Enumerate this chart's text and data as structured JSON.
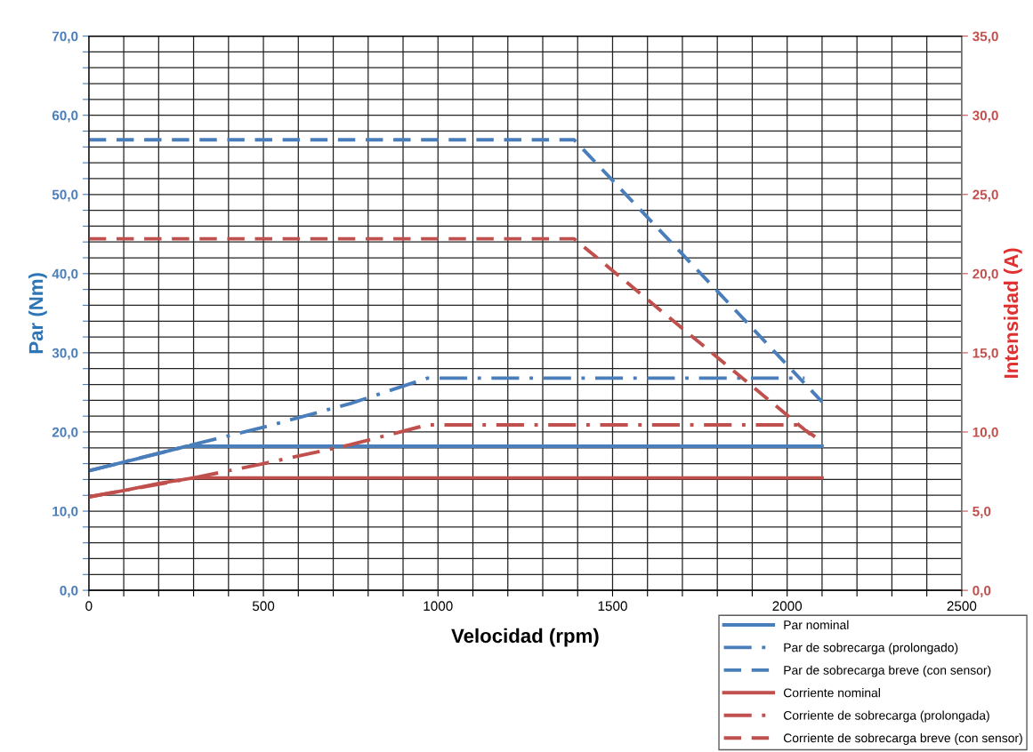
{
  "chart_data": {
    "type": "line",
    "xlabel": "Velocidad (rpm)",
    "ylabel": "Par (Nm)",
    "y2label": "Intensidad (A)",
    "xlim": [
      0,
      2500
    ],
    "ylim": [
      0,
      70
    ],
    "y2lim": [
      0,
      35
    ],
    "xticks": [
      0,
      {
        "value": 100,
        "label": null
      },
      {
        "value": 200,
        "label": null
      },
      {
        "value": 300,
        "label": null
      },
      {
        "value": 400,
        "label": null
      },
      500,
      {
        "value": 600,
        "label": null
      },
      {
        "value": 700,
        "label": null
      },
      {
        "value": 800,
        "label": null
      },
      {
        "value": 900,
        "label": null
      },
      1000,
      {
        "value": 1100,
        "label": null
      },
      {
        "value": 1200,
        "label": null
      },
      {
        "value": 1300,
        "label": null
      },
      {
        "value": 1400,
        "label": null
      },
      1500,
      {
        "value": 1600,
        "label": null
      },
      {
        "value": 1700,
        "label": null
      },
      {
        "value": 1800,
        "label": null
      },
      {
        "value": 1900,
        "label": null
      },
      2000,
      {
        "value": 2100,
        "label": null
      },
      {
        "value": 2200,
        "label": null
      },
      {
        "value": 2300,
        "label": null
      },
      {
        "value": 2400,
        "label": null
      },
      2500
    ],
    "yticks": [
      {
        "value": 0,
        "label": "0,0"
      },
      {
        "value": 2,
        "label": null
      },
      {
        "value": 4,
        "label": null
      },
      {
        "value": 6,
        "label": null
      },
      {
        "value": 8,
        "label": null
      },
      {
        "value": 10,
        "label": "10,0"
      },
      {
        "value": 12,
        "label": null
      },
      {
        "value": 14,
        "label": null
      },
      {
        "value": 16,
        "label": null
      },
      {
        "value": 18,
        "label": null
      },
      {
        "value": 20,
        "label": "20,0"
      },
      {
        "value": 22,
        "label": null
      },
      {
        "value": 24,
        "label": null
      },
      {
        "value": 26,
        "label": null
      },
      {
        "value": 28,
        "label": null
      },
      {
        "value": 30,
        "label": "30,0"
      },
      {
        "value": 32,
        "label": null
      },
      {
        "value": 34,
        "label": null
      },
      {
        "value": 36,
        "label": null
      },
      {
        "value": 38,
        "label": null
      },
      {
        "value": 40,
        "label": "40,0"
      },
      {
        "value": 42,
        "label": null
      },
      {
        "value": 44,
        "label": null
      },
      {
        "value": 46,
        "label": null
      },
      {
        "value": 48,
        "label": null
      },
      {
        "value": 50,
        "label": "50,0"
      },
      {
        "value": 52,
        "label": null
      },
      {
        "value": 54,
        "label": null
      },
      {
        "value": 56,
        "label": null
      },
      {
        "value": 58,
        "label": null
      },
      {
        "value": 60,
        "label": "60,0"
      },
      {
        "value": 62,
        "label": null
      },
      {
        "value": 64,
        "label": null
      },
      {
        "value": 66,
        "label": null
      },
      {
        "value": 68,
        "label": null
      },
      {
        "value": 70,
        "label": "70,0"
      }
    ],
    "y2ticks": [
      {
        "value": 0,
        "label": "0,0"
      },
      {
        "value": 5,
        "label": "5,0"
      },
      {
        "value": 10,
        "label": "10,0"
      },
      {
        "value": 15,
        "label": "15,0"
      },
      {
        "value": 20,
        "label": "20,0"
      },
      {
        "value": 25,
        "label": "25,0"
      },
      {
        "value": 30,
        "label": "30,0"
      },
      {
        "value": 35,
        "label": "35,0"
      }
    ],
    "grid": true,
    "legend": "bottom right",
    "marker": "none",
    "series": [
      {
        "name": "Par nominal",
        "color": "#4a7ebb",
        "line_style": "solid",
        "x": [
          0,
          100,
          200,
          280,
          2100
        ],
        "values": [
          15.1,
          16.2,
          17.3,
          18.2,
          18.2
        ]
      },
      {
        "name": "Par de sobrecarga (prolongado)",
        "color": "#4a7ebb",
        "line_style": "dashdot",
        "x": [
          0,
          280,
          500,
          750,
          970,
          2050
        ],
        "values": [
          15.1,
          18.2,
          20.6,
          23.6,
          26.8,
          26.8
        ]
      },
      {
        "name": "Par de sobrecarga breve (con sensor)",
        "color": "#4a7ebb",
        "line_style": "dashed",
        "x": [
          0,
          1390,
          2100
        ],
        "values": [
          56.9,
          56.9,
          23.8
        ]
      },
      {
        "name": "Corriente nominal",
        "color": "#c0504d",
        "line_style": "solid",
        "axis": "y2",
        "x": [
          0,
          100,
          200,
          300,
          2100
        ],
        "values": [
          5.9,
          6.3,
          6.75,
          7.1,
          7.1
        ]
      },
      {
        "name": "Corriente de sobrecarga (prolongada)",
        "color": "#c0504d",
        "line_style": "dashdot",
        "axis": "y2",
        "x": [
          0,
          300,
          500,
          750,
          970,
          2030,
          2080
        ],
        "values": [
          5.9,
          7.1,
          8.0,
          9.2,
          10.45,
          10.45,
          9.7
        ]
      },
      {
        "name": "Corriente de sobrecarga breve (con sensor)",
        "color": "#c0504d",
        "line_style": "dashed",
        "axis": "y2",
        "x": [
          0,
          1390,
          2080
        ],
        "values": [
          22.2,
          22.2,
          9.6
        ]
      }
    ]
  }
}
